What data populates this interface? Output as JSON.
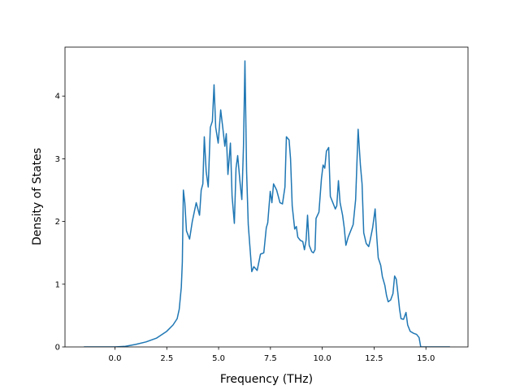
{
  "chart_data": {
    "type": "line",
    "xlabel": "Frequency (THz)",
    "ylabel": "Density of States",
    "color": "#1f77b4",
    "xlim": [
      -2.41,
      17.03
    ],
    "ylim": [
      0,
      4.78
    ],
    "xticks": [
      {
        "value": 0,
        "label": "0.0"
      },
      2.5,
      {
        "value": 5,
        "label": "5.0"
      },
      7.5,
      {
        "value": 10,
        "label": "10.0"
      },
      12.5,
      {
        "value": 15,
        "label": "15.0"
      }
    ],
    "yticks": [
      0,
      1,
      2,
      3,
      4
    ],
    "x": [
      -1.5,
      0,
      0.5,
      1.0,
      1.5,
      2.0,
      2.5,
      2.8,
      3.0,
      3.1,
      3.2,
      3.25,
      3.3,
      3.37,
      3.45,
      3.6,
      3.73,
      3.92,
      4.08,
      4.16,
      4.24,
      4.31,
      4.4,
      4.5,
      4.6,
      4.7,
      4.78,
      4.86,
      4.98,
      5.1,
      5.2,
      5.3,
      5.37,
      5.45,
      5.57,
      5.65,
      5.76,
      5.84,
      5.92,
      6.04,
      6.12,
      6.2,
      6.27,
      6.35,
      6.43,
      6.6,
      6.7,
      6.86,
      7.02,
      7.18,
      7.3,
      7.37,
      7.49,
      7.57,
      7.65,
      7.8,
      7.96,
      8.08,
      8.2,
      8.27,
      8.4,
      8.47,
      8.55,
      8.67,
      8.75,
      8.82,
      8.94,
      9.06,
      9.14,
      9.22,
      9.29,
      9.37,
      9.49,
      9.57,
      9.65,
      9.7,
      9.84,
      9.96,
      10.04,
      10.12,
      10.2,
      10.31,
      10.39,
      10.51,
      10.63,
      10.7,
      10.78,
      10.86,
      10.98,
      11.06,
      11.14,
      11.25,
      11.37,
      11.49,
      11.61,
      11.73,
      11.84,
      11.92,
      12.0,
      12.12,
      12.24,
      12.31,
      12.43,
      12.55,
      12.63,
      12.7,
      12.82,
      12.9,
      13.02,
      13.1,
      13.18,
      13.3,
      13.41,
      13.49,
      13.57,
      13.65,
      13.73,
      13.8,
      13.92,
      14.04,
      14.12,
      14.24,
      14.39,
      14.55,
      14.67,
      14.75,
      16.16
    ],
    "values": [
      0,
      0,
      0.01,
      0.04,
      0.08,
      0.14,
      0.25,
      0.35,
      0.45,
      0.6,
      0.95,
      1.35,
      2.5,
      2.3,
      1.85,
      1.72,
      2.0,
      2.3,
      2.1,
      2.5,
      2.6,
      3.35,
      2.8,
      2.55,
      3.5,
      3.6,
      4.18,
      3.5,
      3.25,
      3.78,
      3.5,
      3.2,
      3.4,
      2.75,
      3.25,
      2.4,
      1.97,
      2.85,
      3.05,
      2.6,
      2.35,
      3.2,
      4.56,
      2.8,
      1.95,
      1.2,
      1.28,
      1.22,
      1.48,
      1.5,
      1.9,
      1.98,
      2.48,
      2.3,
      2.6,
      2.5,
      2.3,
      2.28,
      2.55,
      3.35,
      3.3,
      3.0,
      2.25,
      1.88,
      1.92,
      1.75,
      1.7,
      1.68,
      1.55,
      1.7,
      2.1,
      1.62,
      1.52,
      1.5,
      1.55,
      2.05,
      2.15,
      2.68,
      2.9,
      2.85,
      3.12,
      3.18,
      2.4,
      2.3,
      2.2,
      2.25,
      2.65,
      2.3,
      2.1,
      1.9,
      1.62,
      1.75,
      1.85,
      1.95,
      2.35,
      3.47,
      2.9,
      2.6,
      1.82,
      1.65,
      1.6,
      1.7,
      1.9,
      2.2,
      1.75,
      1.42,
      1.3,
      1.12,
      0.98,
      0.82,
      0.72,
      0.75,
      0.85,
      1.13,
      1.08,
      0.85,
      0.6,
      0.45,
      0.44,
      0.55,
      0.35,
      0.25,
      0.22,
      0.2,
      0.15,
      0,
      0
    ]
  }
}
